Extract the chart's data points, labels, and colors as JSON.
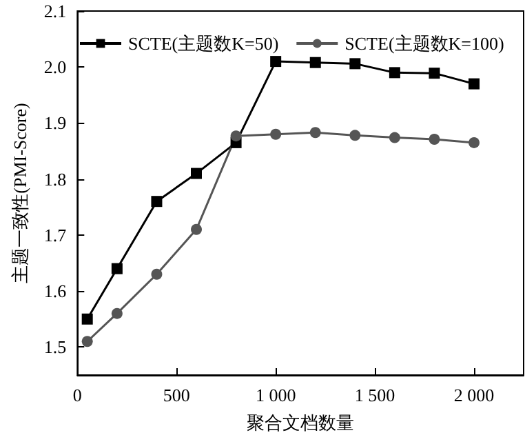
{
  "chart_data": {
    "type": "line",
    "xlabel": "聚合文档数量",
    "ylabel": "主题一致性(PMI-Score)",
    "x": [
      50,
      200,
      400,
      600,
      800,
      1000,
      1200,
      1400,
      1600,
      1800,
      2000
    ],
    "series": [
      {
        "name": "SCTE(主题数K=50)",
        "color": "#000000",
        "marker": "square",
        "values": [
          1.55,
          1.64,
          1.76,
          1.81,
          1.865,
          2.01,
          2.008,
          2.006,
          1.99,
          1.989,
          1.97
        ]
      },
      {
        "name": "SCTE(主题数K=100)",
        "color": "#555555",
        "marker": "circle",
        "values": [
          1.51,
          1.56,
          1.63,
          1.71,
          1.877,
          1.88,
          1.883,
          1.878,
          1.874,
          1.871,
          1.865
        ]
      }
    ],
    "xlim": [
      0,
      2250
    ],
    "xticks": [
      0,
      500,
      {
        "value": 1000,
        "label": "1 000"
      },
      {
        "value": 1500,
        "label": "1 500"
      },
      {
        "value": 2000,
        "label": "2 000"
      }
    ],
    "ylim": [
      1.45,
      2.1
    ],
    "yticks": [
      1.5,
      1.6,
      1.7,
      1.8,
      1.9,
      {
        "value": 2.0,
        "label": "2.0"
      },
      2.1
    ],
    "grid": false,
    "legend": "top",
    "line_style": "solid"
  }
}
